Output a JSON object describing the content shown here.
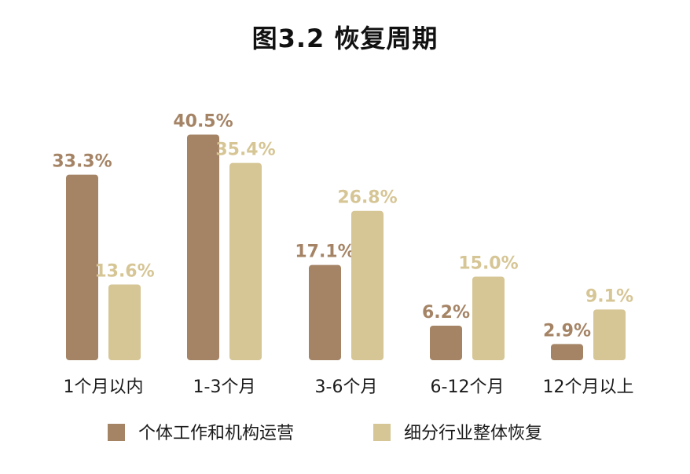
{
  "chart_title": "图3.2  恢复周期",
  "chart_data": {
    "type": "bar",
    "title": "图3.2  恢复周期",
    "xlabel": "",
    "ylabel": "",
    "ylim": [
      0,
      45
    ],
    "grid": false,
    "legend_position": "bottom-center",
    "categories": [
      "1个月以内",
      "1-3个月",
      "3-6个月",
      "6-12个月",
      "12个月以上"
    ],
    "series": [
      {
        "name": "个体工作和机构运营",
        "color": "#a58466",
        "values": [
          33.3,
          40.5,
          17.1,
          6.2,
          2.9
        ],
        "labels": [
          "33.3%",
          "40.5%",
          "17.1%",
          "6.2%",
          "2.9%"
        ]
      },
      {
        "name": "细分行业整体恢复",
        "color": "#d6c595",
        "values": [
          13.6,
          35.4,
          26.8,
          15.0,
          9.1
        ],
        "labels": [
          "13.6%",
          "35.4%",
          "26.8%",
          "15.0%",
          "9.1%"
        ]
      }
    ]
  }
}
